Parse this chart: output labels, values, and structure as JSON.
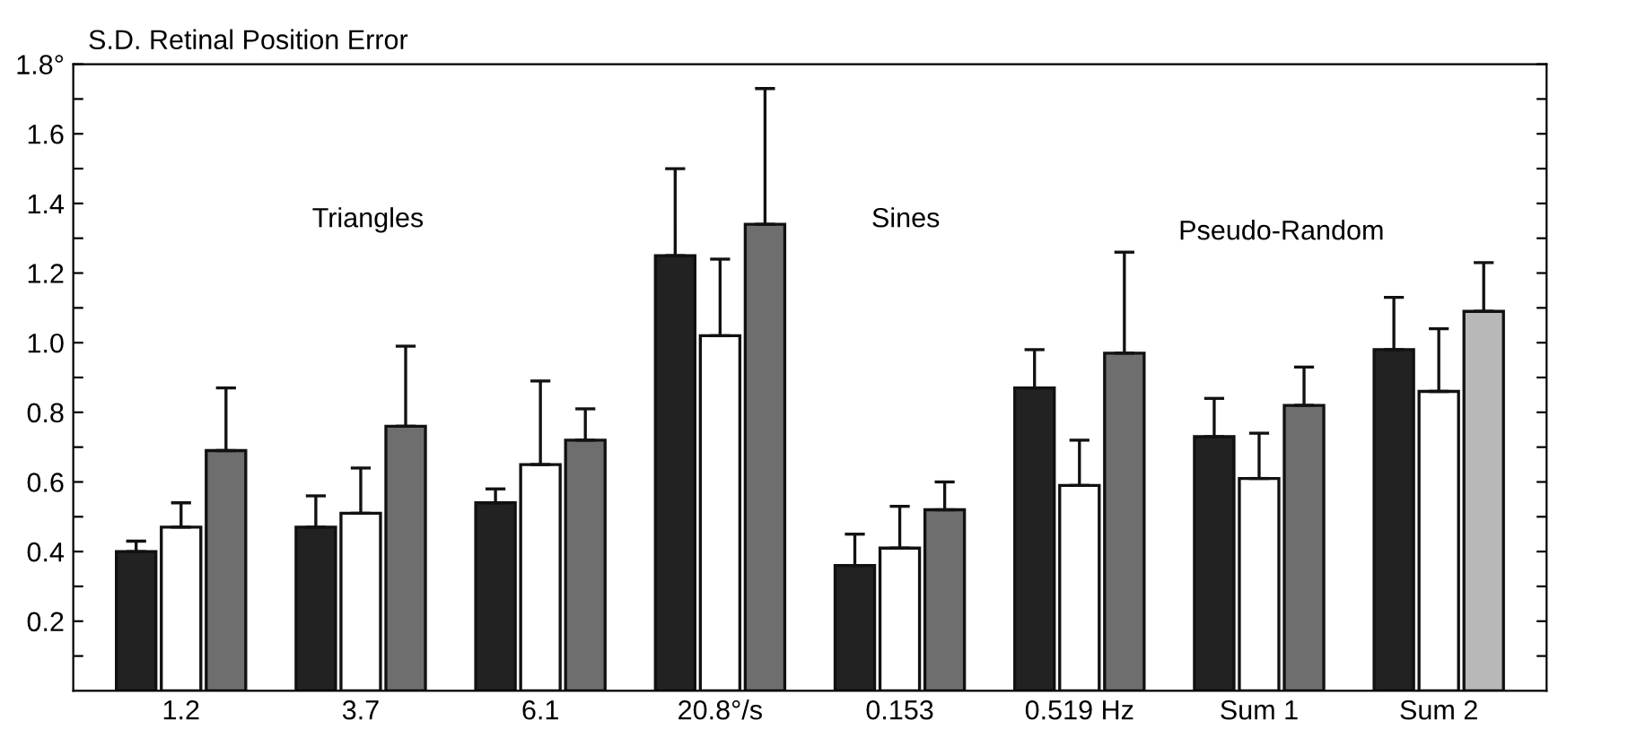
{
  "chart_data": {
    "type": "bar",
    "ylabel": "S.D. Retinal Position Error",
    "categories": [
      "1.2",
      "3.7",
      "6.1",
      "20.8°/s",
      "0.153",
      "0.519 Hz",
      "Sum 1",
      "Sum 2"
    ],
    "series": [
      {
        "color": "#222222",
        "values": [
          0.4,
          0.47,
          0.54,
          1.25,
          0.36,
          0.87,
          0.73,
          0.98
        ],
        "errors": [
          [
            0.4,
            0.43
          ],
          [
            0.47,
            0.56
          ],
          [
            0.54,
            0.58
          ],
          [
            1.25,
            1.5
          ],
          [
            0.36,
            0.45
          ],
          [
            0.87,
            0.98
          ],
          [
            0.73,
            0.84
          ],
          [
            0.98,
            1.13
          ]
        ]
      },
      {
        "color": "#ffffff",
        "values": [
          0.47,
          0.51,
          0.65,
          1.02,
          0.41,
          0.59,
          0.61,
          0.86
        ],
        "errors": [
          [
            0.47,
            0.54
          ],
          [
            0.51,
            0.64
          ],
          [
            0.65,
            0.89
          ],
          [
            1.02,
            1.24
          ],
          [
            0.41,
            0.53
          ],
          [
            0.59,
            0.72
          ],
          [
            0.61,
            0.74
          ],
          [
            0.86,
            1.04
          ]
        ]
      },
      {
        "colors": [
          "#6e6e6e",
          "#6e6e6e",
          "#6e6e6e",
          "#6e6e6e",
          "#6e6e6e",
          "#6e6e6e",
          "#6e6e6e",
          "#b8b8b8"
        ],
        "values": [
          0.69,
          0.76,
          0.72,
          1.34,
          0.52,
          0.97,
          0.82,
          1.09
        ],
        "errors": [
          [
            0.69,
            0.87
          ],
          [
            0.76,
            0.99
          ],
          [
            0.72,
            0.81
          ],
          [
            1.34,
            1.73
          ],
          [
            0.52,
            0.6
          ],
          [
            0.97,
            1.26
          ],
          [
            0.82,
            0.93
          ],
          [
            1.09,
            1.23
          ]
        ]
      }
    ],
    "ylim": [
      0,
      1.8
    ],
    "yticks": [
      {
        "value": 0.1,
        "label": null
      },
      0.2,
      {
        "value": 0.3,
        "label": null
      },
      0.4,
      {
        "value": 0.5,
        "label": null
      },
      0.6,
      {
        "value": 0.7,
        "label": null
      },
      0.8,
      {
        "value": 0.9,
        "label": null
      },
      {
        "value": 1.0,
        "label": "1.0"
      },
      {
        "value": 1.1,
        "label": null
      },
      1.2,
      {
        "value": 1.3,
        "label": null
      },
      1.4,
      {
        "value": 1.5,
        "label": null
      },
      1.6,
      {
        "value": 1.7,
        "label": null
      },
      {
        "value": 1.8,
        "label": "1.8°"
      }
    ],
    "annotations": [
      "Triangles",
      "Sines",
      "Pseudo-Random"
    ],
    "grid": false,
    "legend": false
  }
}
